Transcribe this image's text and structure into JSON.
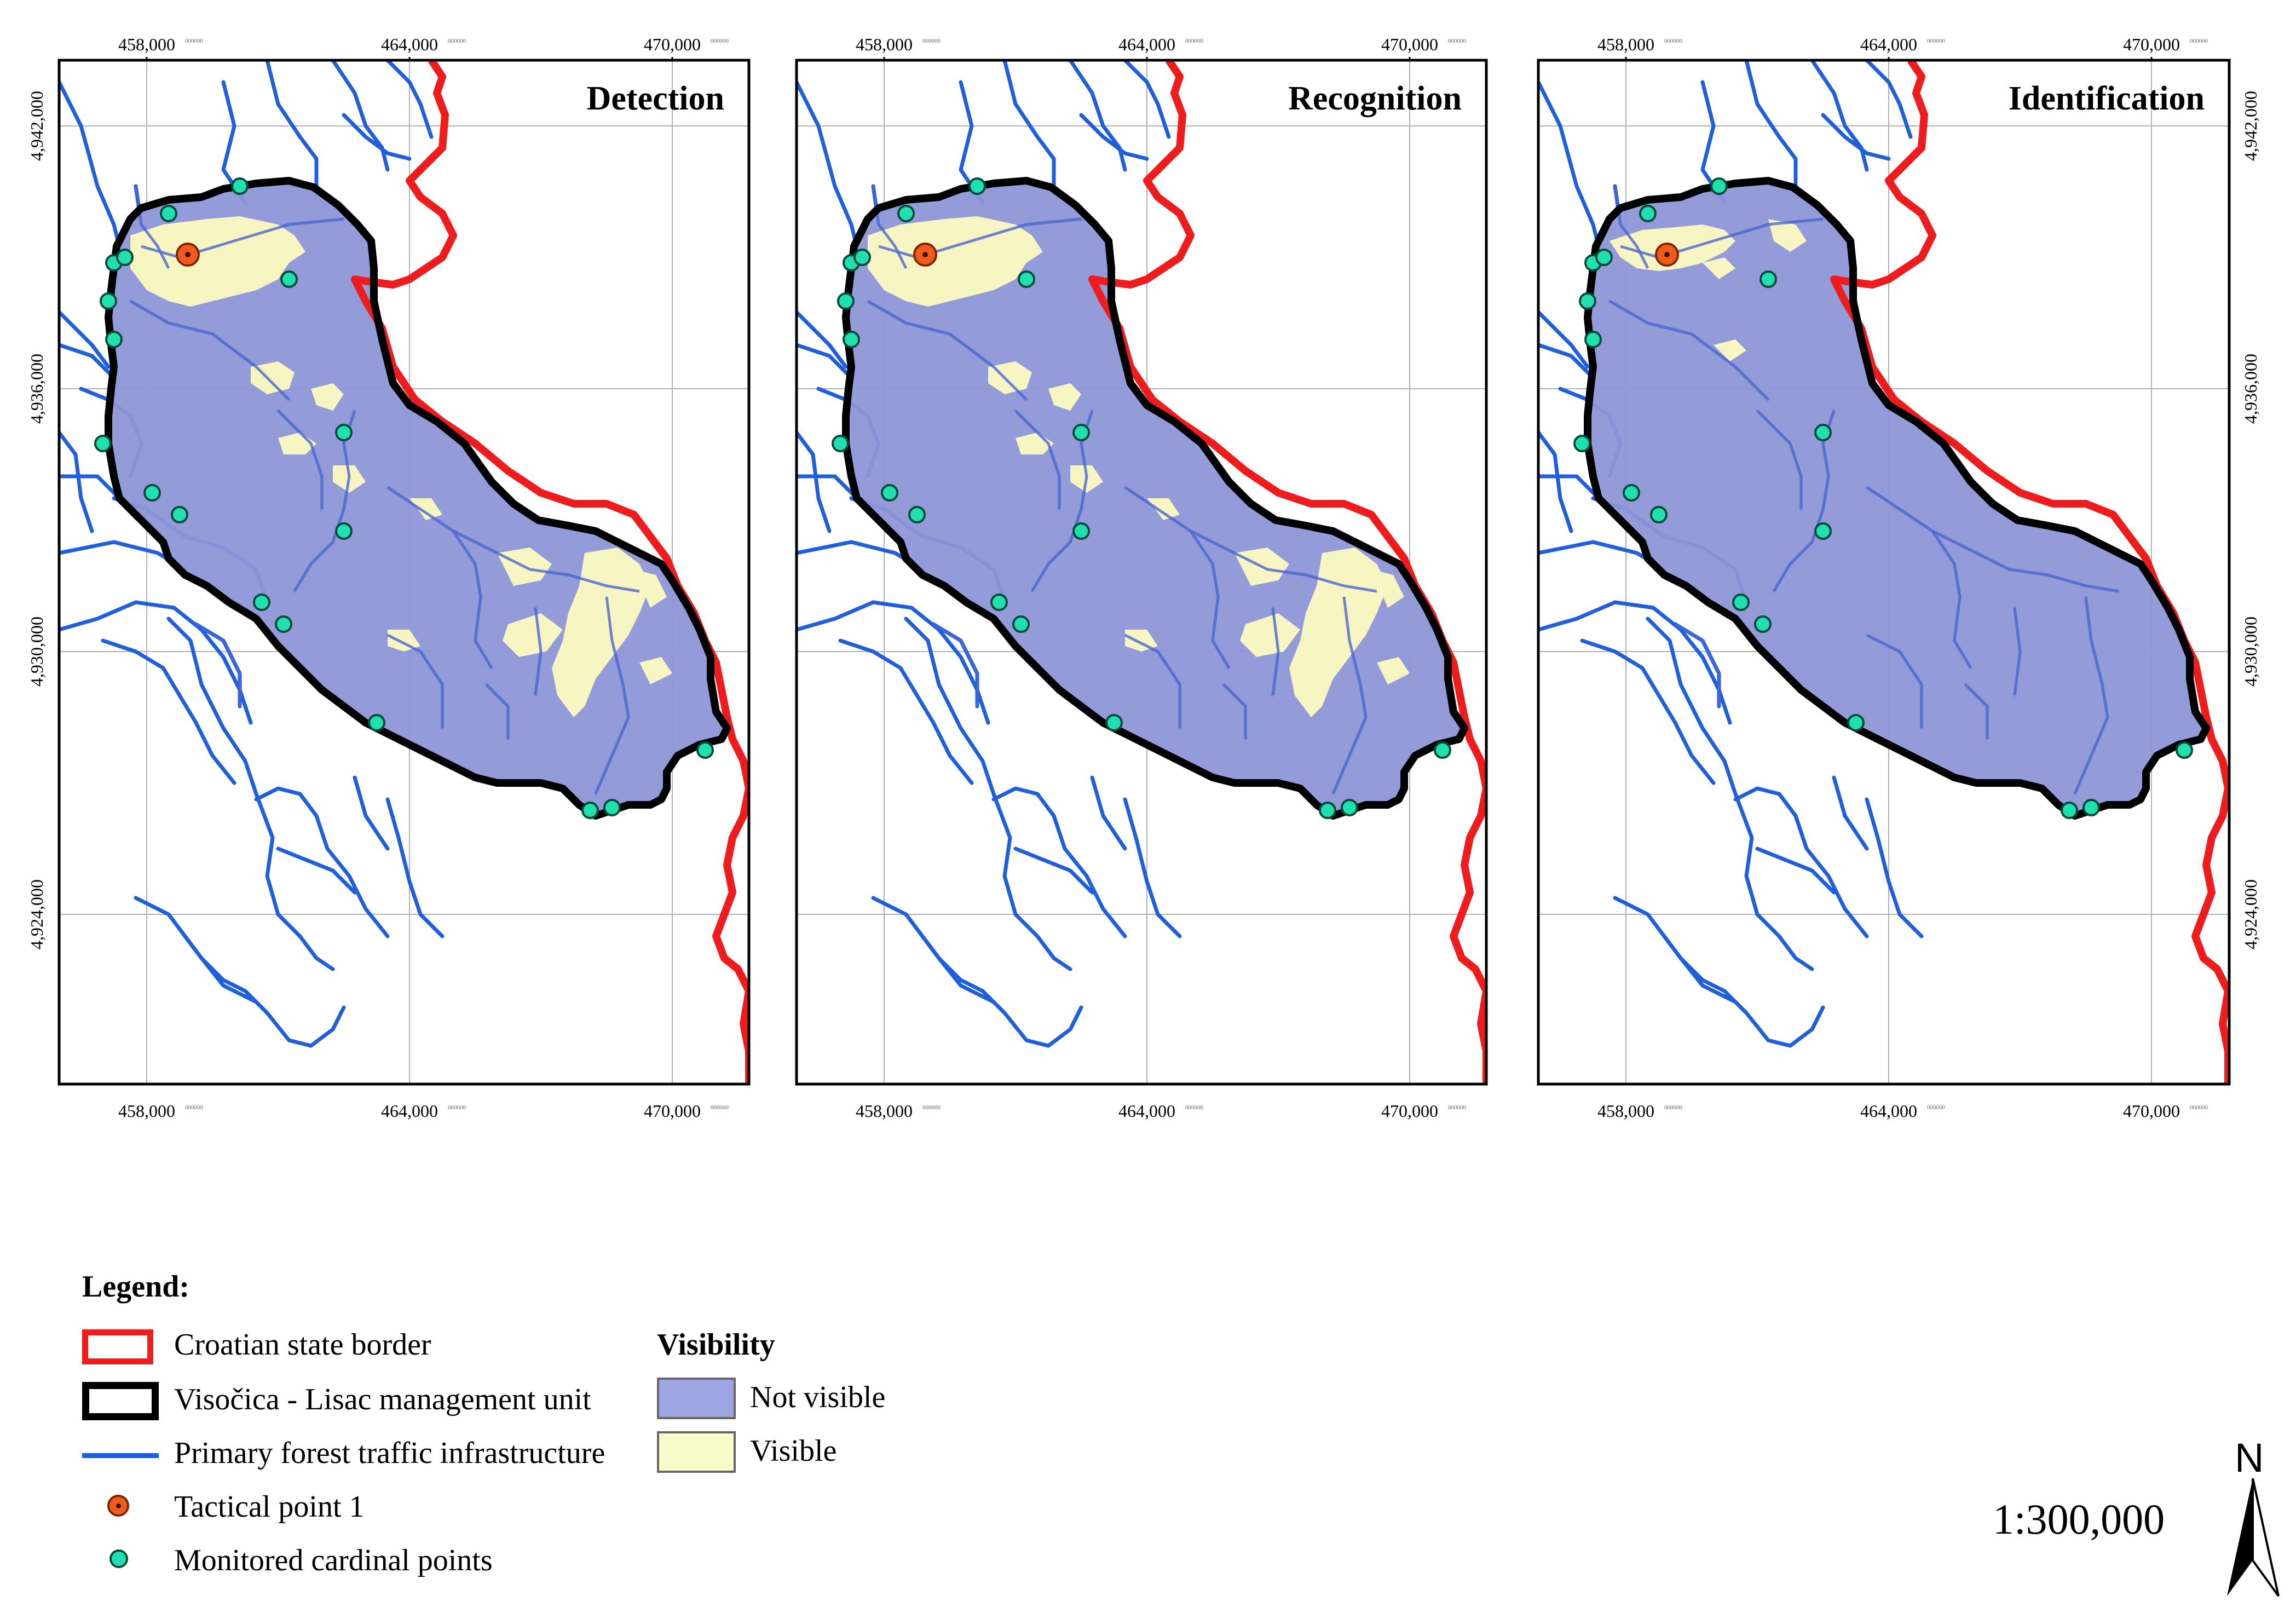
{
  "panels": [
    {
      "title": "Detection",
      "visibility_extent": "large"
    },
    {
      "title": "Recognition",
      "visibility_extent": "large"
    },
    {
      "title": "Identification",
      "visibility_extent": "small"
    }
  ],
  "axes": {
    "x_ticks": [
      "458,000",
      "464,000",
      "470,000"
    ],
    "y_ticks": [
      "4,942,000",
      "4,936,000",
      "4,930,000",
      "4,924,000"
    ],
    "tick_suffix": "000000"
  },
  "legend": {
    "heading": "Legend:",
    "items": [
      {
        "label": "Croatian state border",
        "symbol": "red-outline-box",
        "color": "#ee1c1c"
      },
      {
        "label": "Visočica - Lisac management unit",
        "symbol": "black-outline-box",
        "color": "#000000"
      },
      {
        "label": "Primary forest traffic infrastructure",
        "symbol": "blue-line",
        "color": "#1f5fdc"
      },
      {
        "label": "Tactical point 1",
        "symbol": "orange-dot",
        "color": "#f05a1a"
      },
      {
        "label": "Monitored cardinal points",
        "symbol": "teal-dot",
        "color": "#20e0b0"
      }
    ],
    "visibility_heading": "Visibility",
    "visibility_items": [
      {
        "label": "Not visible",
        "color": "#9da6e2"
      },
      {
        "label": "Visible",
        "color": "#fbfbc9"
      }
    ]
  },
  "scale_text": "1:300,000",
  "north_label": "N",
  "colors": {
    "not_visible_fill": "#8d96d6",
    "visible_fill": "#f7f6c2",
    "border": "#ee1c1c",
    "unit_outline": "#000000",
    "roads": "#1f5fdc",
    "tactical_point": "#f05a1a",
    "cardinal_points": "#20e0b0",
    "grid": "#b0b0b0"
  }
}
